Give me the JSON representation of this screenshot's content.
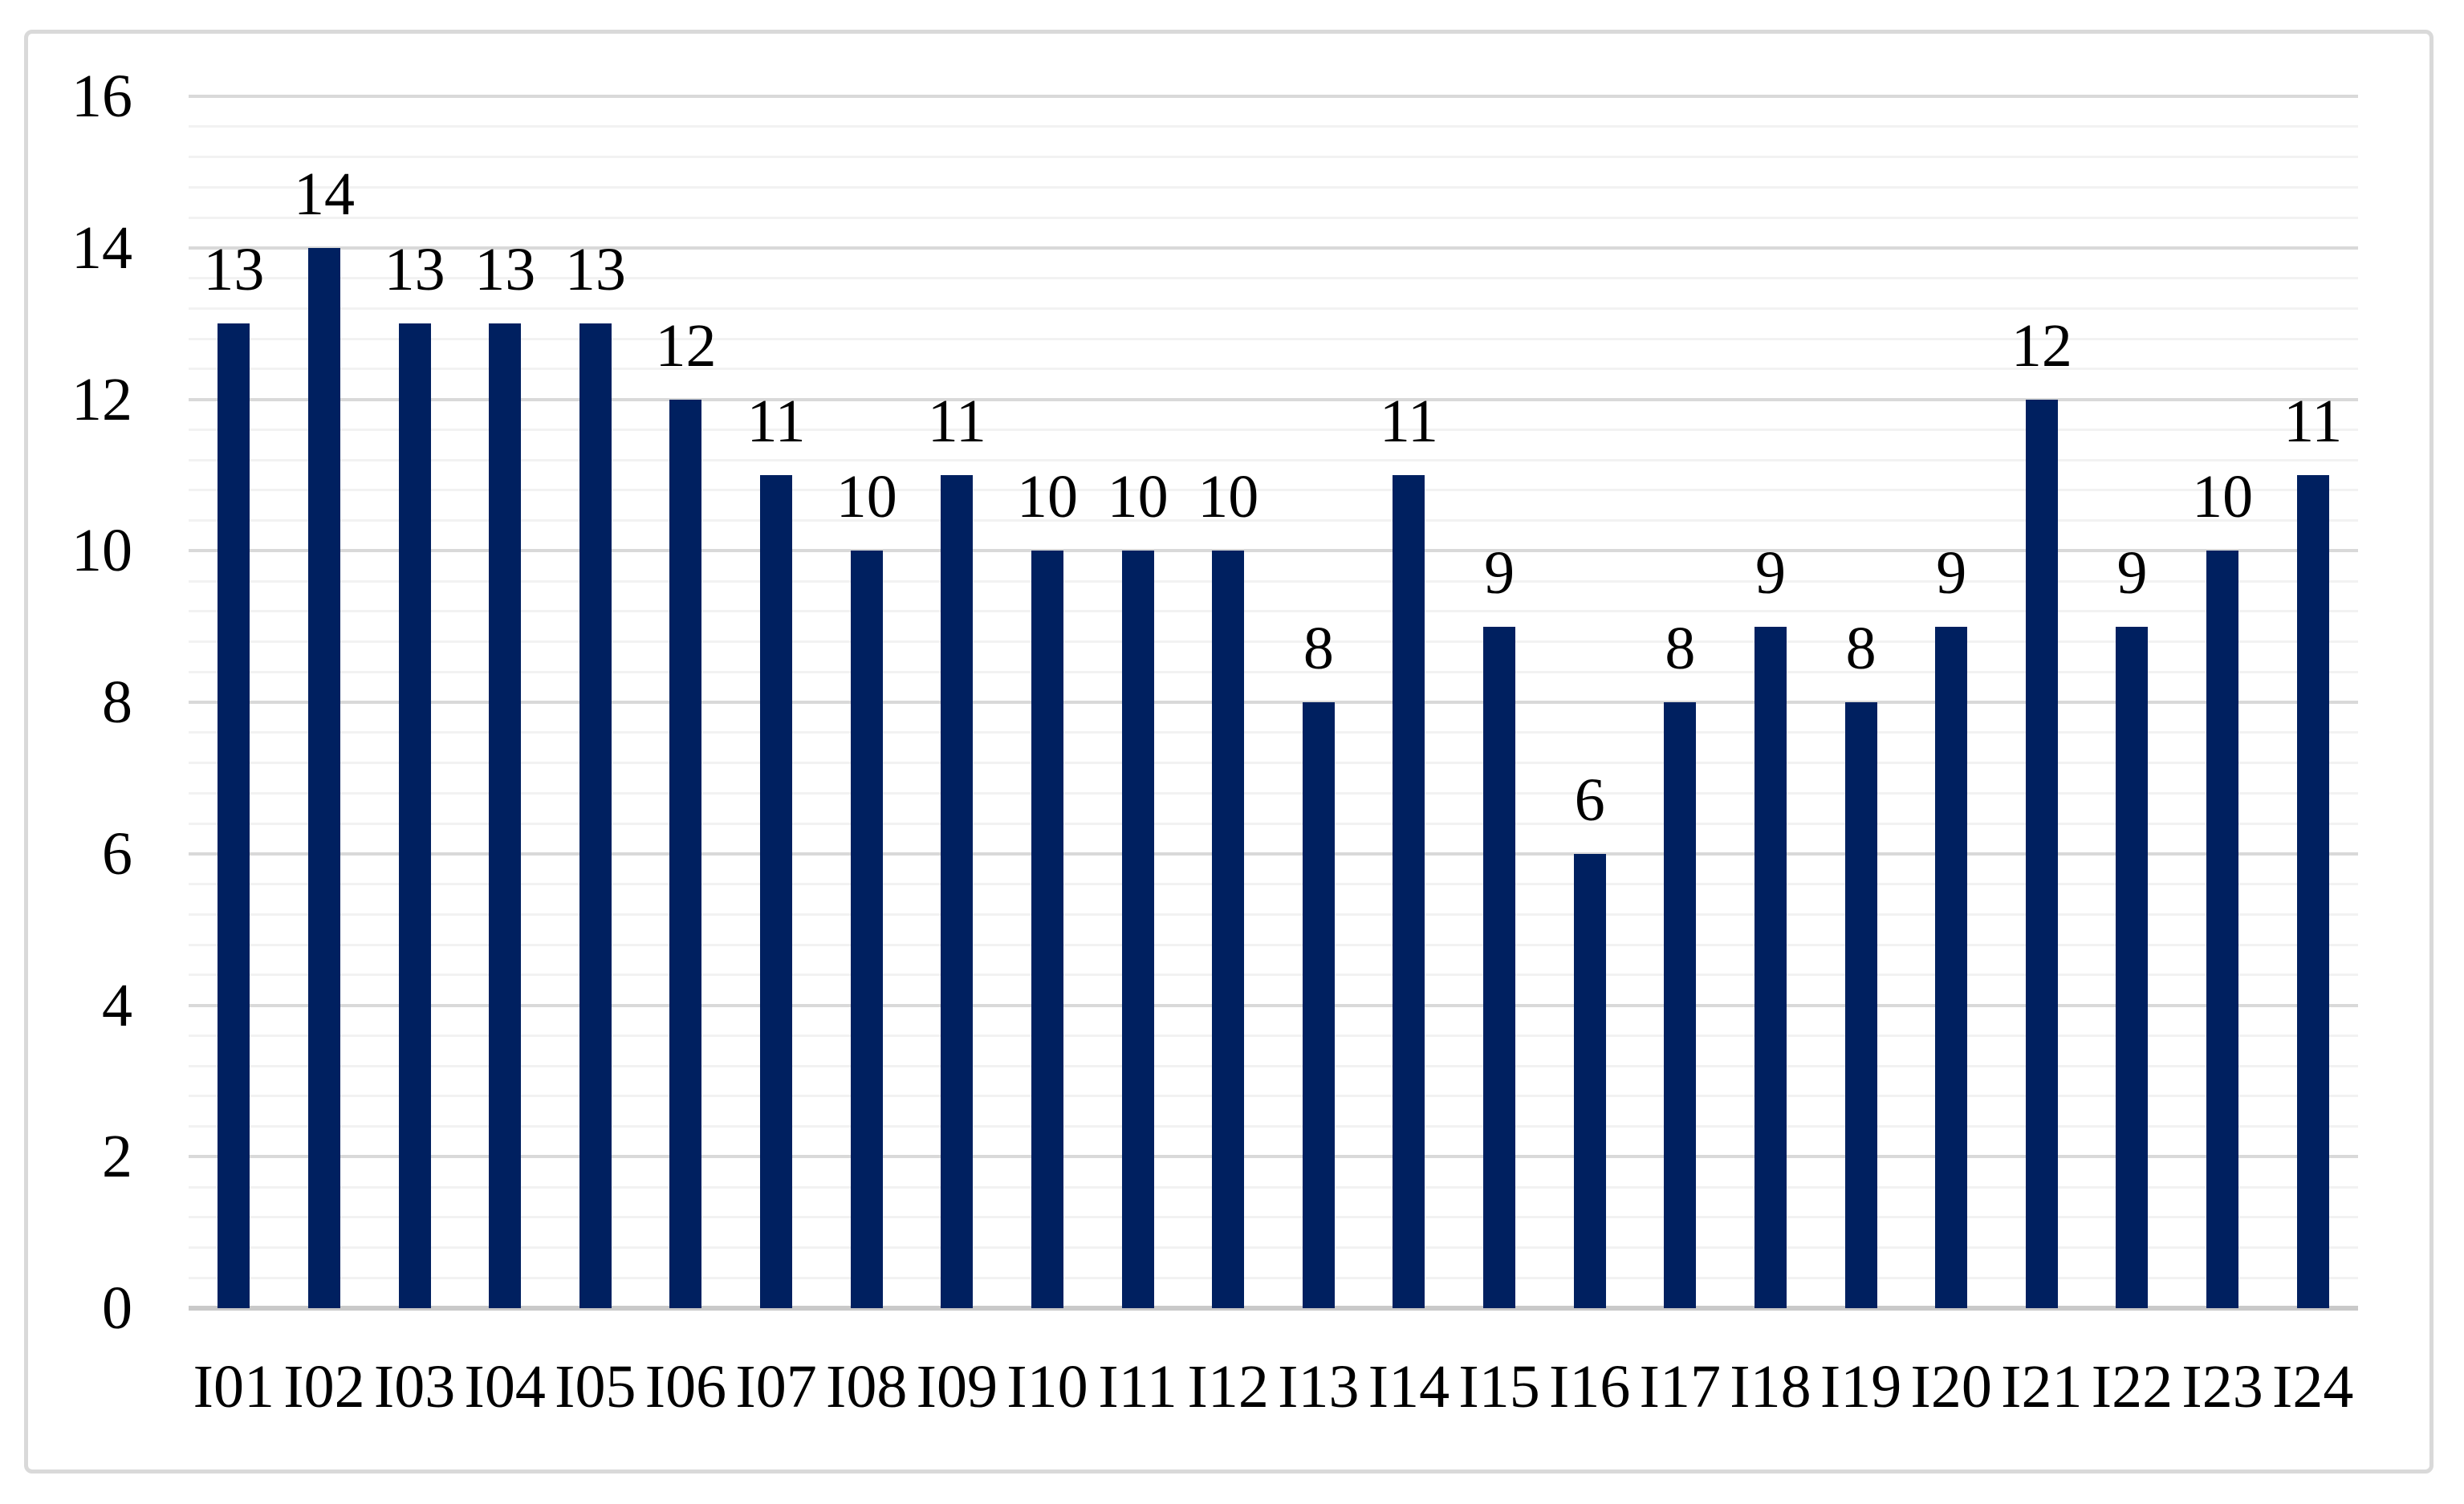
{
  "figure": {
    "background": "#ffffff",
    "border_color": "#d9d9d9",
    "title": "",
    "legend": "none"
  },
  "colors": {
    "bar": "#002060",
    "major_gridline": "#d9d9d9",
    "minor_gridline": "#f2f2f2",
    "axis_line": "#c9c9c9",
    "text": "#000000"
  },
  "axes": {
    "y_tick_labels": [
      "0",
      "2",
      "4",
      "6",
      "8",
      "10",
      "12",
      "14",
      "16"
    ],
    "x_tick_labels": [
      "I01",
      "I02",
      "I03",
      "I04",
      "I05",
      "I06",
      "I07",
      "I08",
      "I09",
      "I10",
      "I11",
      "I12",
      "I13",
      "I14",
      "I15",
      "I16",
      "I17",
      "I18",
      "I19",
      "I20",
      "I21",
      "I22",
      "I23",
      "I24"
    ]
  },
  "chart_data": {
    "type": "bar",
    "categories": [
      "I01",
      "I02",
      "I03",
      "I04",
      "I05",
      "I06",
      "I07",
      "I08",
      "I09",
      "I10",
      "I11",
      "I12",
      "I13",
      "I14",
      "I15",
      "I16",
      "I17",
      "I18",
      "I19",
      "I20",
      "I21",
      "I22",
      "I23",
      "I24"
    ],
    "values": [
      13,
      14,
      13,
      13,
      13,
      12,
      11,
      10,
      11,
      10,
      10,
      10,
      8,
      11,
      9,
      6,
      8,
      9,
      8,
      9,
      12,
      9,
      10,
      11
    ],
    "data_labels": [
      13,
      14,
      13,
      13,
      13,
      12,
      11,
      10,
      11,
      10,
      10,
      10,
      8,
      11,
      9,
      6,
      8,
      9,
      8,
      9,
      12,
      9,
      10,
      11
    ],
    "title": "",
    "xlabel": "",
    "ylabel": "",
    "ylim": [
      0,
      16
    ],
    "y_major_unit": 2,
    "y_minor_unit": 0.4,
    "y_major_ticks": [
      0,
      2,
      4,
      6,
      8,
      10,
      12,
      14,
      16
    ],
    "grid": "horizontal major+minor",
    "legend_position": "none",
    "data_label_position": "outside-end",
    "bar_color": "#002060"
  }
}
